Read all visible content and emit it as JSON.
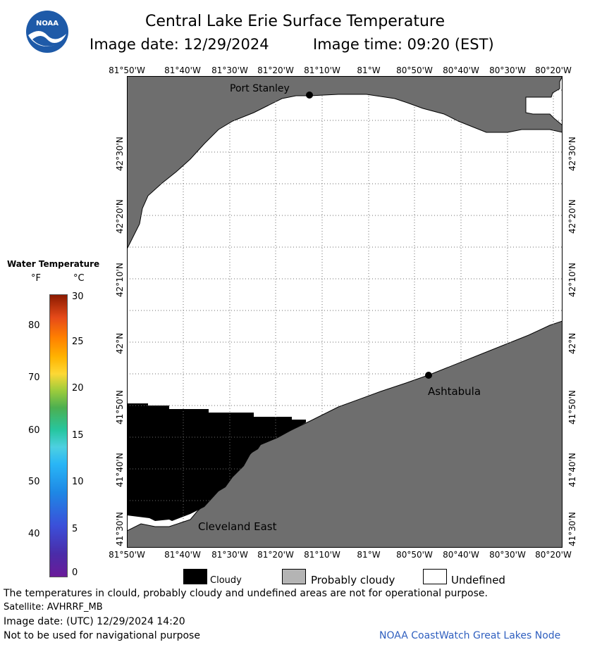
{
  "header": {
    "title": "Central Lake Erie Surface Temperature",
    "image_date": "Image date: 12/29/2024",
    "image_time": "Image time: 09:20 (EST)",
    "logo_text": "NOAA"
  },
  "map": {
    "lon_labels": [
      "81°50'W",
      "81°40'W",
      "81°30'W",
      "81°20'W",
      "81°10'W",
      "81°W",
      "80°50'W",
      "80°40'W",
      "80°30'W",
      "80°20'W"
    ],
    "lat_labels": [
      "42°30'N",
      "42°20'N",
      "42°10'N",
      "42°N",
      "41°50'N",
      "41°40'N",
      "41°30'N"
    ],
    "places": {
      "port_stanley": "Port Stanley",
      "ashtabula": "Ashtabula",
      "cleveland_east": "Cleveland East"
    },
    "colors": {
      "land": "#6e6e6e",
      "cloudy": "#000000",
      "undefined": "#ffffff",
      "grid": "#6e6e6e"
    }
  },
  "legend": {
    "title": "Water Temperature",
    "unit_f": "°F",
    "unit_c": "°C",
    "fahrenheit_ticks": [
      "80",
      "70",
      "60",
      "50",
      "40"
    ],
    "celsius_ticks": [
      "30",
      "25",
      "20",
      "15",
      "10",
      "5",
      "0"
    ]
  },
  "key": {
    "cloudy": "Cloudy",
    "probably_cloudy": "Probably cloudy",
    "undefined": "Undefined"
  },
  "footer": {
    "disclaimer": "The temperatures in clould, probably cloudy and undefined areas are not for operational purpose.",
    "satellite": "Satellite: AVHRRF_MB",
    "utc_date": "Image date: (UTC) 12/29/2024  14:20",
    "nav_warning": "Not to be used for navigational purpose",
    "credit": "NOAA CoastWatch Great Lakes Node"
  }
}
